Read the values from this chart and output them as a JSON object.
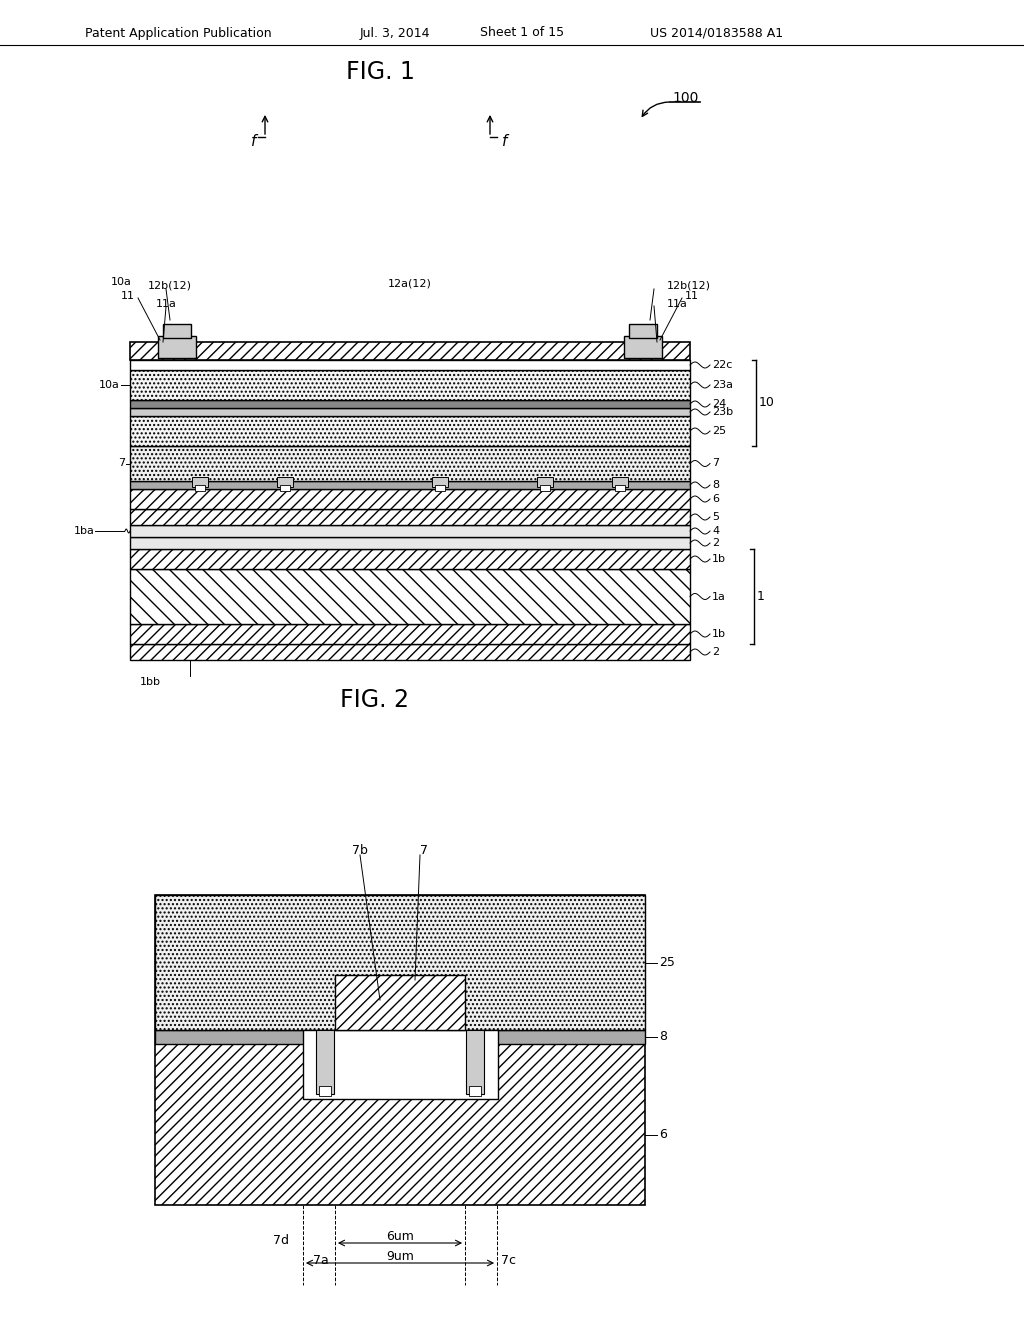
{
  "bg_color": "#ffffff",
  "header_text": "Patent Application Publication",
  "header_date": "Jul. 3, 2014",
  "header_sheet": "Sheet 1 of 15",
  "header_patent": "US 2014/0183588 A1",
  "fig1_title": "FIG. 1",
  "fig2_title": "FIG. 2",
  "fig1_label": "100"
}
